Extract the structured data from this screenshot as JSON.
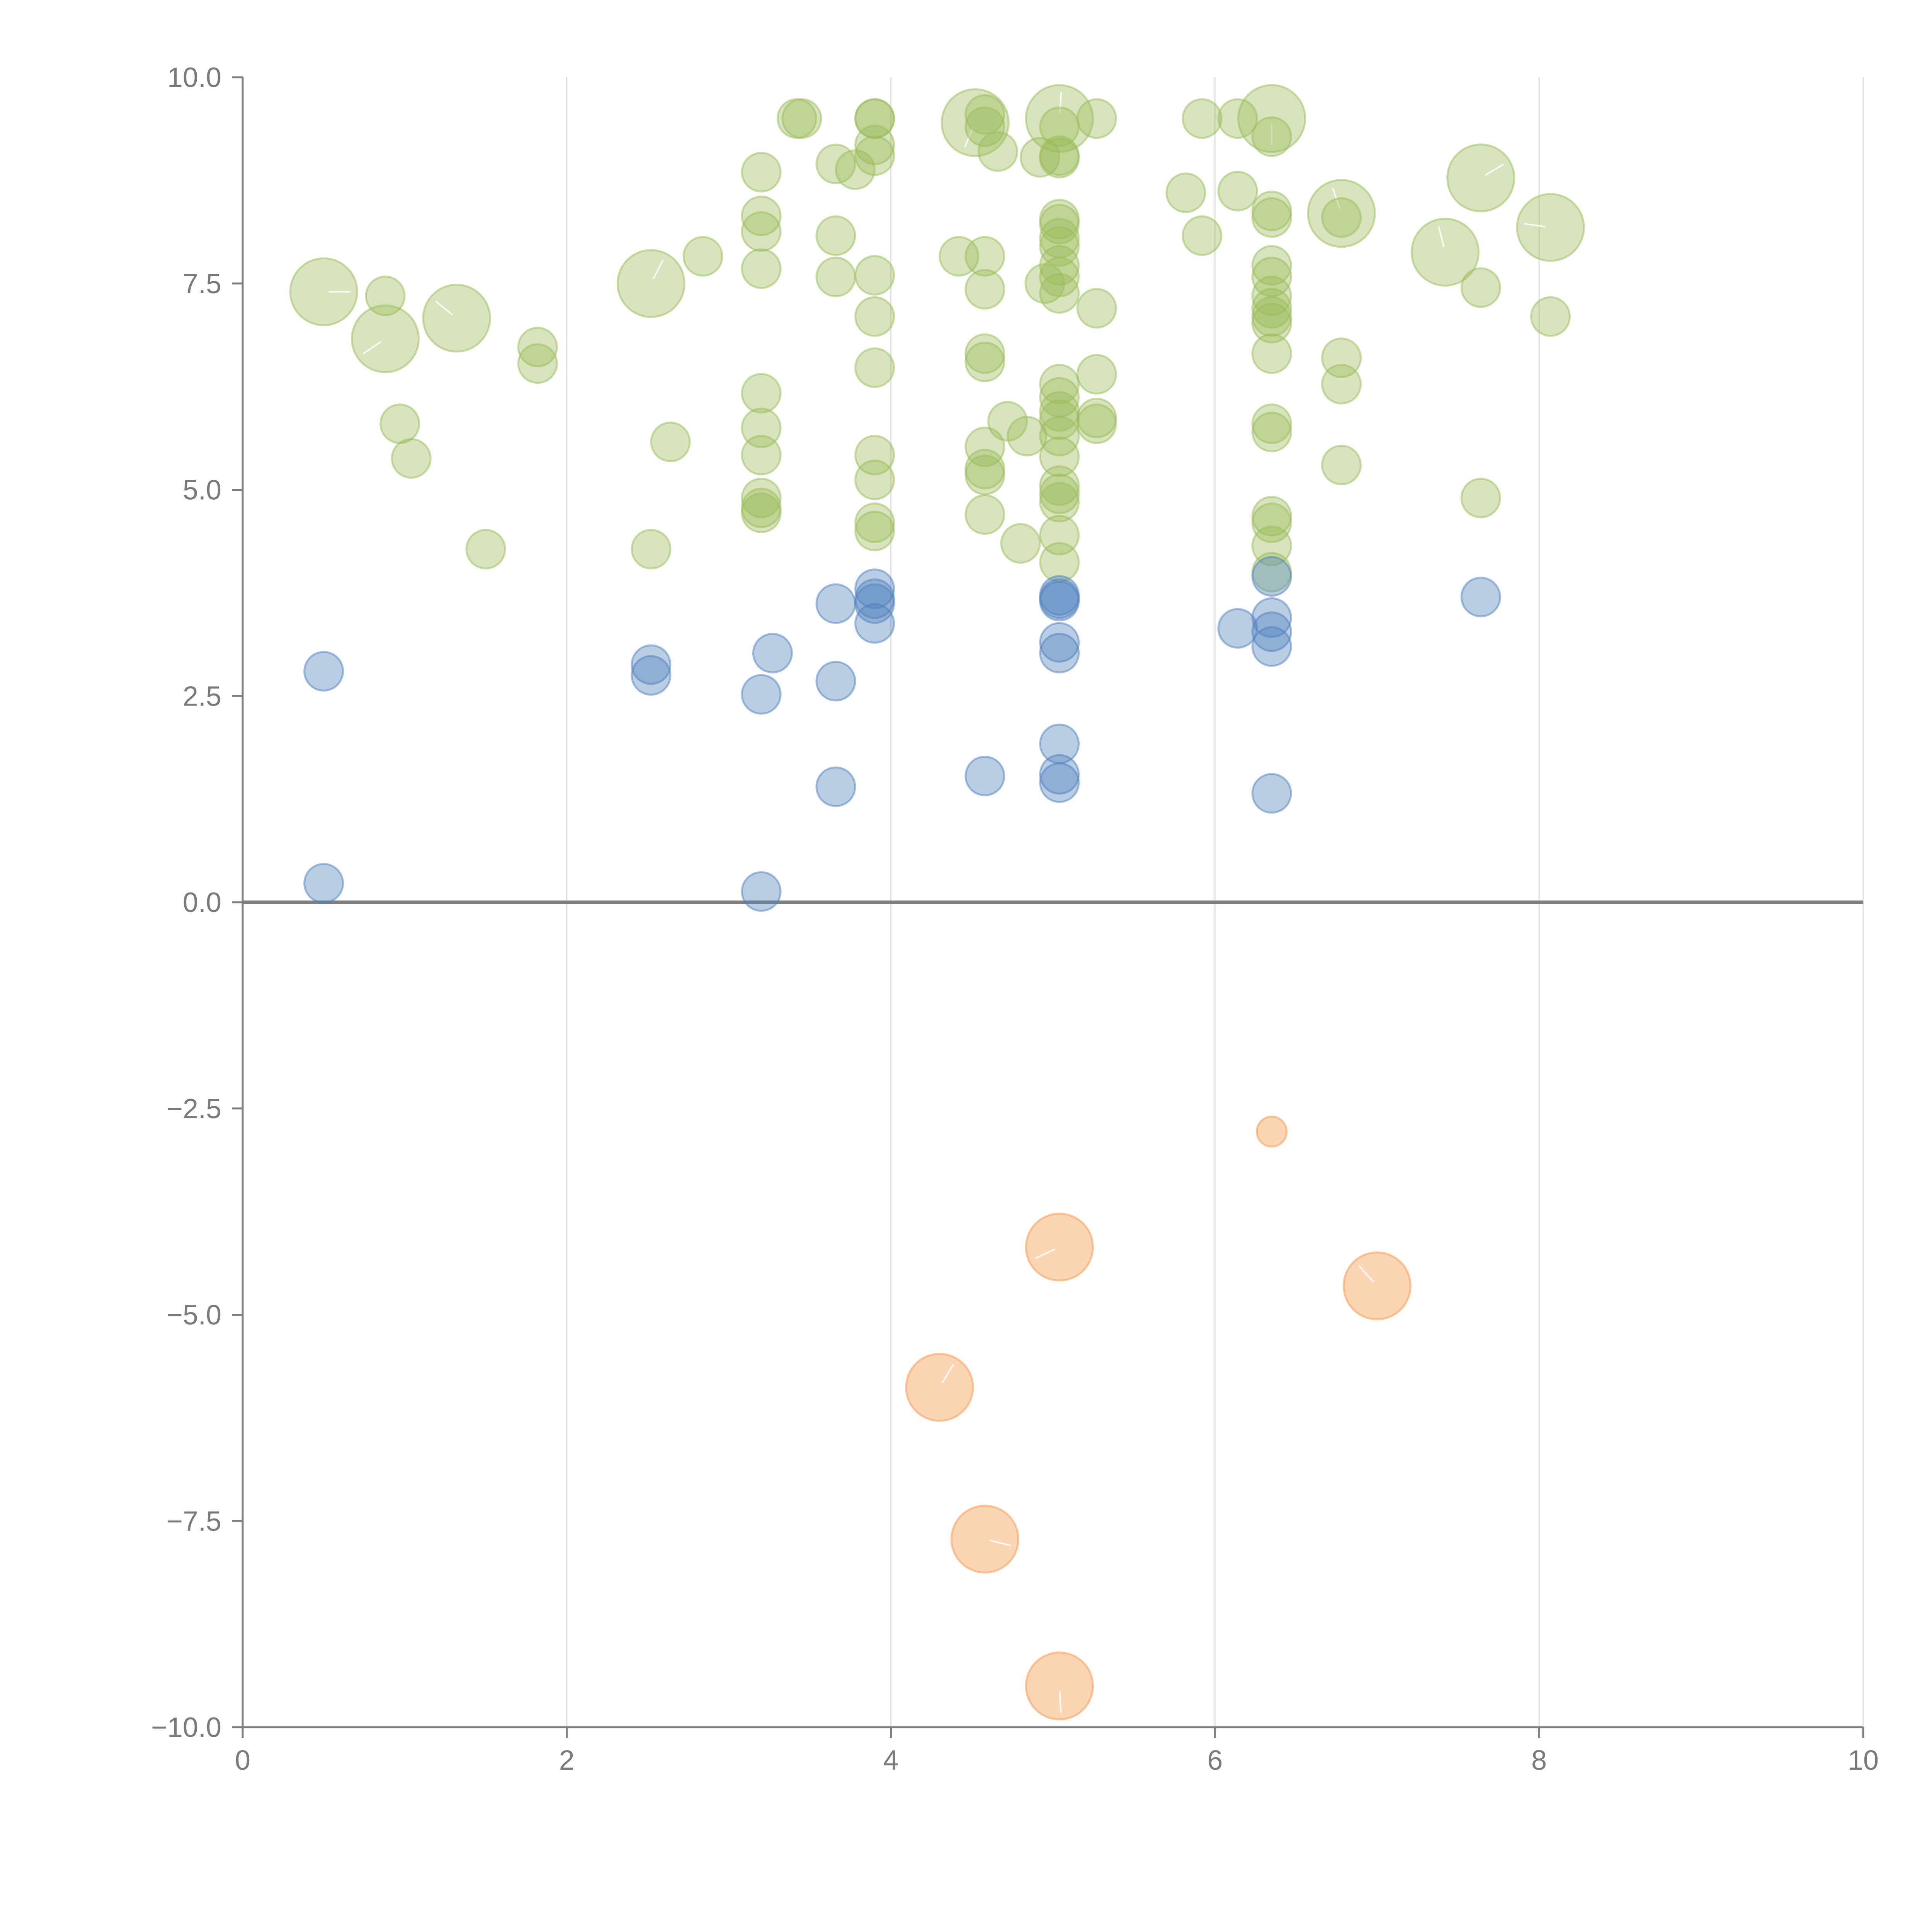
{
  "chart_data": {
    "type": "scatter",
    "subtype": "bubble",
    "title": "",
    "xlabel": "",
    "ylabel": "",
    "xlim": [
      0,
      10
    ],
    "ylim": [
      -10,
      10
    ],
    "x_ticks": [
      0,
      2,
      4,
      6,
      8,
      10
    ],
    "x_tick_labels": [
      "0",
      "2",
      "4",
      "6",
      "8",
      "10"
    ],
    "y_ticks": [
      10,
      7.5,
      5,
      2.5,
      0,
      -2.5,
      -5,
      -7.5,
      -10
    ],
    "y_tick_labels": [
      "10.0",
      "7.5",
      "5.0",
      "2.5",
      "0.0",
      "−2.5",
      "−5.0",
      "−7.5",
      "−10.0"
    ],
    "vertical_grid": true,
    "horizontal_grid": false,
    "zero_line": true,
    "legend": "none",
    "series": [
      {
        "name": "green",
        "color": "#9bbb59",
        "points": [
          {
            "x": 0.5,
            "y": 7.4,
            "s": 3
          },
          {
            "x": 0.88,
            "y": 7.35,
            "s": 1
          },
          {
            "x": 0.88,
            "y": 6.83,
            "s": 3
          },
          {
            "x": 1.32,
            "y": 7.08,
            "s": 3
          },
          {
            "x": 0.97,
            "y": 5.8,
            "s": 1
          },
          {
            "x": 1.04,
            "y": 5.38,
            "s": 1
          },
          {
            "x": 1.5,
            "y": 4.28,
            "s": 1
          },
          {
            "x": 1.82,
            "y": 6.73,
            "s": 1
          },
          {
            "x": 1.82,
            "y": 6.53,
            "s": 1
          },
          {
            "x": 2.52,
            "y": 7.5,
            "s": 3
          },
          {
            "x": 2.84,
            "y": 7.83,
            "s": 1
          },
          {
            "x": 2.64,
            "y": 5.58,
            "s": 1
          },
          {
            "x": 2.52,
            "y": 4.28,
            "s": 1
          },
          {
            "x": 3.2,
            "y": 8.85,
            "s": 1
          },
          {
            "x": 3.2,
            "y": 8.32,
            "s": 1
          },
          {
            "x": 3.2,
            "y": 8.13,
            "s": 1
          },
          {
            "x": 3.2,
            "y": 7.68,
            "s": 1
          },
          {
            "x": 3.2,
            "y": 6.17,
            "s": 1
          },
          {
            "x": 3.2,
            "y": 5.75,
            "s": 1
          },
          {
            "x": 3.2,
            "y": 5.42,
            "s": 1
          },
          {
            "x": 3.2,
            "y": 4.9,
            "s": 1
          },
          {
            "x": 3.2,
            "y": 4.78,
            "s": 1
          },
          {
            "x": 3.2,
            "y": 4.72,
            "s": 1
          },
          {
            "x": 3.42,
            "y": 9.5,
            "s": 1
          },
          {
            "x": 3.45,
            "y": 9.5,
            "s": 1
          },
          {
            "x": 3.66,
            "y": 8.95,
            "s": 1
          },
          {
            "x": 3.66,
            "y": 8.08,
            "s": 1
          },
          {
            "x": 3.66,
            "y": 7.58,
            "s": 1
          },
          {
            "x": 3.78,
            "y": 8.88,
            "s": 1
          },
          {
            "x": 3.9,
            "y": 9.5,
            "s": 1
          },
          {
            "x": 3.9,
            "y": 9.5,
            "s": 1
          },
          {
            "x": 3.9,
            "y": 9.18,
            "s": 1
          },
          {
            "x": 3.9,
            "y": 9.05,
            "s": 1
          },
          {
            "x": 3.9,
            "y": 7.6,
            "s": 1
          },
          {
            "x": 3.9,
            "y": 7.1,
            "s": 1
          },
          {
            "x": 3.9,
            "y": 6.48,
            "s": 1
          },
          {
            "x": 3.9,
            "y": 5.42,
            "s": 1
          },
          {
            "x": 3.9,
            "y": 5.12,
            "s": 1
          },
          {
            "x": 3.9,
            "y": 4.6,
            "s": 1
          },
          {
            "x": 3.9,
            "y": 4.5,
            "s": 1
          },
          {
            "x": 4.42,
            "y": 7.83,
            "s": 1
          },
          {
            "x": 4.52,
            "y": 9.45,
            "s": 3
          },
          {
            "x": 4.58,
            "y": 9.55,
            "s": 1
          },
          {
            "x": 4.58,
            "y": 9.4,
            "s": 1
          },
          {
            "x": 4.66,
            "y": 9.1,
            "s": 1
          },
          {
            "x": 4.58,
            "y": 7.83,
            "s": 1
          },
          {
            "x": 4.58,
            "y": 7.43,
            "s": 1
          },
          {
            "x": 4.58,
            "y": 6.65,
            "s": 1
          },
          {
            "x": 4.58,
            "y": 6.55,
            "s": 1
          },
          {
            "x": 4.58,
            "y": 5.52,
            "s": 1
          },
          {
            "x": 4.58,
            "y": 5.25,
            "s": 1
          },
          {
            "x": 4.58,
            "y": 5.18,
            "s": 1
          },
          {
            "x": 4.58,
            "y": 4.7,
            "s": 1
          },
          {
            "x": 4.72,
            "y": 5.83,
            "s": 1
          },
          {
            "x": 4.84,
            "y": 5.65,
            "s": 1
          },
          {
            "x": 4.8,
            "y": 4.35,
            "s": 1
          },
          {
            "x": 4.92,
            "y": 9.03,
            "s": 1
          },
          {
            "x": 4.95,
            "y": 7.5,
            "s": 1
          },
          {
            "x": 5.04,
            "y": 9.5,
            "s": 3
          },
          {
            "x": 5.04,
            "y": 9.4,
            "s": 1
          },
          {
            "x": 5.04,
            "y": 9.05,
            "s": 1
          },
          {
            "x": 5.04,
            "y": 9.02,
            "s": 1
          },
          {
            "x": 5.04,
            "y": 8.28,
            "s": 1
          },
          {
            "x": 5.04,
            "y": 8.22,
            "s": 1
          },
          {
            "x": 5.04,
            "y": 8.05,
            "s": 1
          },
          {
            "x": 5.04,
            "y": 7.95,
            "s": 1
          },
          {
            "x": 5.04,
            "y": 7.72,
            "s": 1
          },
          {
            "x": 5.04,
            "y": 7.58,
            "s": 1
          },
          {
            "x": 5.04,
            "y": 7.38,
            "s": 1
          },
          {
            "x": 5.04,
            "y": 6.28,
            "s": 1
          },
          {
            "x": 5.04,
            "y": 6.12,
            "s": 1
          },
          {
            "x": 5.04,
            "y": 5.95,
            "s": 1
          },
          {
            "x": 5.04,
            "y": 5.85,
            "s": 1
          },
          {
            "x": 5.04,
            "y": 5.65,
            "s": 1
          },
          {
            "x": 5.04,
            "y": 5.4,
            "s": 1
          },
          {
            "x": 5.04,
            "y": 5.05,
            "s": 1
          },
          {
            "x": 5.04,
            "y": 4.95,
            "s": 1
          },
          {
            "x": 5.04,
            "y": 4.85,
            "s": 1
          },
          {
            "x": 5.04,
            "y": 4.45,
            "s": 1
          },
          {
            "x": 5.04,
            "y": 4.12,
            "s": 1
          },
          {
            "x": 5.27,
            "y": 9.5,
            "s": 1
          },
          {
            "x": 5.27,
            "y": 7.2,
            "s": 1
          },
          {
            "x": 5.27,
            "y": 6.4,
            "s": 1
          },
          {
            "x": 5.27,
            "y": 5.87,
            "s": 1
          },
          {
            "x": 5.27,
            "y": 5.8,
            "s": 1
          },
          {
            "x": 5.82,
            "y": 8.6,
            "s": 1
          },
          {
            "x": 5.92,
            "y": 9.5,
            "s": 1
          },
          {
            "x": 5.92,
            "y": 8.08,
            "s": 1
          },
          {
            "x": 6.14,
            "y": 9.5,
            "s": 1
          },
          {
            "x": 6.14,
            "y": 8.62,
            "s": 1
          },
          {
            "x": 6.35,
            "y": 9.5,
            "s": 3
          },
          {
            "x": 6.35,
            "y": 9.28,
            "s": 1
          },
          {
            "x": 6.35,
            "y": 8.38,
            "s": 1
          },
          {
            "x": 6.35,
            "y": 8.3,
            "s": 1
          },
          {
            "x": 6.35,
            "y": 7.72,
            "s": 1
          },
          {
            "x": 6.35,
            "y": 7.58,
            "s": 1
          },
          {
            "x": 6.35,
            "y": 7.35,
            "s": 1
          },
          {
            "x": 6.35,
            "y": 7.2,
            "s": 1
          },
          {
            "x": 6.35,
            "y": 7.1,
            "s": 1
          },
          {
            "x": 6.35,
            "y": 7.02,
            "s": 1
          },
          {
            "x": 6.35,
            "y": 6.65,
            "s": 1
          },
          {
            "x": 6.35,
            "y": 5.8,
            "s": 1
          },
          {
            "x": 6.35,
            "y": 5.7,
            "s": 1
          },
          {
            "x": 6.35,
            "y": 4.68,
            "s": 1
          },
          {
            "x": 6.35,
            "y": 4.6,
            "s": 1
          },
          {
            "x": 6.35,
            "y": 4.32,
            "s": 1
          },
          {
            "x": 6.35,
            "y": 4.0,
            "s": 1
          },
          {
            "x": 6.78,
            "y": 8.35,
            "s": 3
          },
          {
            "x": 6.78,
            "y": 8.3,
            "s": 1
          },
          {
            "x": 6.78,
            "y": 6.6,
            "s": 1
          },
          {
            "x": 6.78,
            "y": 6.28,
            "s": 1
          },
          {
            "x": 6.78,
            "y": 5.3,
            "s": 1
          },
          {
            "x": 7.42,
            "y": 7.88,
            "s": 3
          },
          {
            "x": 7.64,
            "y": 8.78,
            "s": 3
          },
          {
            "x": 7.64,
            "y": 7.45,
            "s": 1
          },
          {
            "x": 7.64,
            "y": 4.9,
            "s": 1
          },
          {
            "x": 8.07,
            "y": 8.18,
            "s": 3
          },
          {
            "x": 8.07,
            "y": 7.1,
            "s": 1
          }
        ]
      },
      {
        "name": "blue",
        "color": "#4f81bd",
        "points": [
          {
            "x": 0.5,
            "y": 2.8,
            "s": 1
          },
          {
            "x": 0.5,
            "y": 0.23,
            "s": 1
          },
          {
            "x": 2.52,
            "y": 2.88,
            "s": 1
          },
          {
            "x": 2.52,
            "y": 2.75,
            "s": 1
          },
          {
            "x": 3.2,
            "y": 2.52,
            "s": 1
          },
          {
            "x": 3.2,
            "y": 0.13,
            "s": 1
          },
          {
            "x": 3.27,
            "y": 3.02,
            "s": 1
          },
          {
            "x": 3.66,
            "y": 3.62,
            "s": 1
          },
          {
            "x": 3.66,
            "y": 2.68,
            "s": 1
          },
          {
            "x": 3.66,
            "y": 1.4,
            "s": 1
          },
          {
            "x": 3.9,
            "y": 3.8,
            "s": 1
          },
          {
            "x": 3.9,
            "y": 3.68,
            "s": 1
          },
          {
            "x": 3.9,
            "y": 3.62,
            "s": 1
          },
          {
            "x": 3.9,
            "y": 3.38,
            "s": 1
          },
          {
            "x": 4.58,
            "y": 1.53,
            "s": 1
          },
          {
            "x": 5.04,
            "y": 3.72,
            "s": 1
          },
          {
            "x": 5.04,
            "y": 3.68,
            "s": 1
          },
          {
            "x": 5.04,
            "y": 3.65,
            "s": 1
          },
          {
            "x": 5.04,
            "y": 3.15,
            "s": 1
          },
          {
            "x": 5.04,
            "y": 3.02,
            "s": 1
          },
          {
            "x": 5.04,
            "y": 1.92,
            "s": 1
          },
          {
            "x": 5.04,
            "y": 1.55,
            "s": 1
          },
          {
            "x": 5.04,
            "y": 1.45,
            "s": 1
          },
          {
            "x": 6.14,
            "y": 3.32,
            "s": 1
          },
          {
            "x": 6.35,
            "y": 3.95,
            "s": 1
          },
          {
            "x": 6.35,
            "y": 3.45,
            "s": 1
          },
          {
            "x": 6.35,
            "y": 3.28,
            "s": 1
          },
          {
            "x": 6.35,
            "y": 3.1,
            "s": 1
          },
          {
            "x": 6.35,
            "y": 1.32,
            "s": 1
          },
          {
            "x": 7.64,
            "y": 3.7,
            "s": 1
          }
        ]
      },
      {
        "name": "orange",
        "color": "#f79646",
        "points": [
          {
            "x": 6.35,
            "y": -2.78,
            "s": 0.6
          },
          {
            "x": 5.04,
            "y": -4.18,
            "s": 3
          },
          {
            "x": 7.0,
            "y": -4.65,
            "s": 3
          },
          {
            "x": 4.3,
            "y": -5.88,
            "s": 3
          },
          {
            "x": 4.58,
            "y": -7.72,
            "s": 3
          },
          {
            "x": 5.04,
            "y": -9.5,
            "s": 3
          }
        ]
      }
    ]
  }
}
